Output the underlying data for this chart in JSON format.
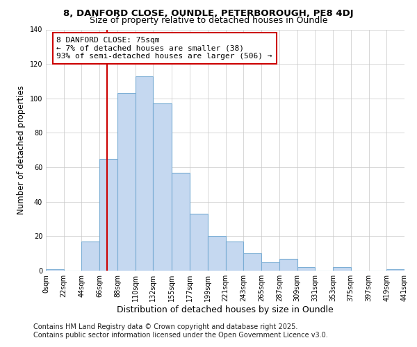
{
  "title1": "8, DANFORD CLOSE, OUNDLE, PETERBOROUGH, PE8 4DJ",
  "title2": "Size of property relative to detached houses in Oundle",
  "xlabel": "Distribution of detached houses by size in Oundle",
  "ylabel": "Number of detached properties",
  "bin_edges": [
    0,
    22,
    44,
    66,
    88,
    110,
    132,
    155,
    177,
    199,
    221,
    243,
    265,
    287,
    309,
    331,
    353,
    375,
    397,
    419,
    441
  ],
  "bar_heights": [
    1,
    0,
    17,
    65,
    103,
    113,
    97,
    57,
    33,
    20,
    17,
    10,
    5,
    7,
    2,
    0,
    2,
    0,
    0,
    1
  ],
  "bar_color": "#c5d8f0",
  "bar_edge_color": "#7aadd4",
  "bar_edge_width": 0.8,
  "grid_color": "#c8c8c8",
  "background_color": "#ffffff",
  "property_line_x": 75,
  "property_line_color": "#cc0000",
  "annotation_line1": "8 DANFORD CLOSE: 75sqm",
  "annotation_line2": "← 7% of detached houses are smaller (38)",
  "annotation_line3": "93% of semi-detached houses are larger (506) →",
  "ylim": [
    0,
    140
  ],
  "yticks": [
    0,
    20,
    40,
    60,
    80,
    100,
    120,
    140
  ],
  "footnote1": "Contains HM Land Registry data © Crown copyright and database right 2025.",
  "footnote2": "Contains public sector information licensed under the Open Government Licence v3.0.",
  "tick_labels": [
    "0sqm",
    "22sqm",
    "44sqm",
    "66sqm",
    "88sqm",
    "110sqm",
    "132sqm",
    "155sqm",
    "177sqm",
    "199sqm",
    "221sqm",
    "243sqm",
    "265sqm",
    "287sqm",
    "309sqm",
    "331sqm",
    "353sqm",
    "375sqm",
    "397sqm",
    "419sqm",
    "441sqm"
  ],
  "title1_fontsize": 9.5,
  "title2_fontsize": 9,
  "xlabel_fontsize": 9,
  "ylabel_fontsize": 8.5,
  "tick_fontsize": 7,
  "footnote_fontsize": 7,
  "annot_fontsize": 8
}
